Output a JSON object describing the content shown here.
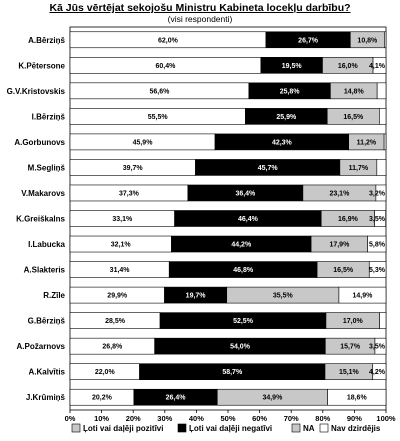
{
  "chart_data": {
    "type": "bar",
    "orientation": "horizontal",
    "stacked": true,
    "title": "Kā Jūs vērtējat sekojošu Ministru Kabineta locekļu darbību?",
    "subtitle": "(visi respondenti)",
    "categories": [
      "A.Bērziņš",
      "K.Pētersone",
      "G.V.Kristovskis",
      "I.Bērziņš",
      "A.Gorbunovs",
      "M.Segliņš",
      "V.Makarovs",
      "K.Greiškalns",
      "I.Labucka",
      "A.Slakteris",
      "R.Zīle",
      "G.Bērziņš",
      "A.Požarnovs",
      "A.Kalvītis",
      "J.Krūmiņš"
    ],
    "series": [
      {
        "name": "Ļoti vai daļēji pozitīvi",
        "color": "#ffffff",
        "values": [
          62.0,
          60.4,
          56.6,
          55.5,
          45.9,
          39.7,
          37.3,
          33.1,
          32.1,
          31.4,
          29.9,
          28.5,
          26.8,
          22.0,
          20.2
        ]
      },
      {
        "name": "Ļoti vai daļēji negatīvi",
        "color": "#000000",
        "values": [
          26.7,
          19.5,
          25.8,
          25.9,
          42.3,
          45.7,
          36.4,
          46.4,
          44.2,
          46.8,
          19.7,
          52.5,
          54.0,
          58.7,
          26.4
        ]
      },
      {
        "name": "NA",
        "color": "#c8c8c8",
        "values": [
          10.8,
          16.0,
          14.8,
          16.5,
          11.2,
          11.7,
          23.1,
          16.9,
          17.9,
          16.5,
          35.5,
          17.0,
          15.7,
          15.1,
          34.9
        ]
      },
      {
        "name": "Nav dzirdējis",
        "color": "#ffffff",
        "values": [
          0.5,
          4.1,
          2.8,
          2.1,
          0.6,
          2.9,
          3.2,
          3.5,
          5.8,
          5.3,
          14.9,
          2.0,
          3.5,
          4.2,
          18.6
        ]
      }
    ],
    "labels": [
      [
        "62,0%",
        "26,7%",
        "10,8%",
        ""
      ],
      [
        "60,4%",
        "19,5%",
        "16,0%",
        "4,1%"
      ],
      [
        "56,6%",
        "25,8%",
        "14,8%",
        ""
      ],
      [
        "55,5%",
        "25,9%",
        "16,5%",
        ""
      ],
      [
        "45,9%",
        "42,3%",
        "11,2%",
        ""
      ],
      [
        "39,7%",
        "45,7%",
        "11,7%",
        ""
      ],
      [
        "37,3%",
        "36,4%",
        "23,1%",
        "3,2%"
      ],
      [
        "33,1%",
        "46,4%",
        "16,9%",
        "3,5%"
      ],
      [
        "32,1%",
        "44,2%",
        "17,9%",
        "5,8%"
      ],
      [
        "31,4%",
        "46,8%",
        "16,5%",
        "5,3%"
      ],
      [
        "29,9%",
        "19,7%",
        "35,5%",
        "14,9%"
      ],
      [
        "28,5%",
        "52,5%",
        "17,0%",
        ""
      ],
      [
        "26,8%",
        "54,0%",
        "15,7%",
        "3,5%"
      ],
      [
        "22,0%",
        "58,7%",
        "15,1%",
        "4,2%"
      ],
      [
        "20,2%",
        "26,4%",
        "34,9%",
        "18,6%"
      ]
    ],
    "x_ticks": [
      "0%",
      "10%",
      "20%",
      "30%",
      "40%",
      "50%",
      "60%",
      "70%",
      "80%",
      "90%",
      "100%"
    ],
    "xlim": [
      0,
      100
    ],
    "grid": true,
    "legend_position": "bottom"
  }
}
